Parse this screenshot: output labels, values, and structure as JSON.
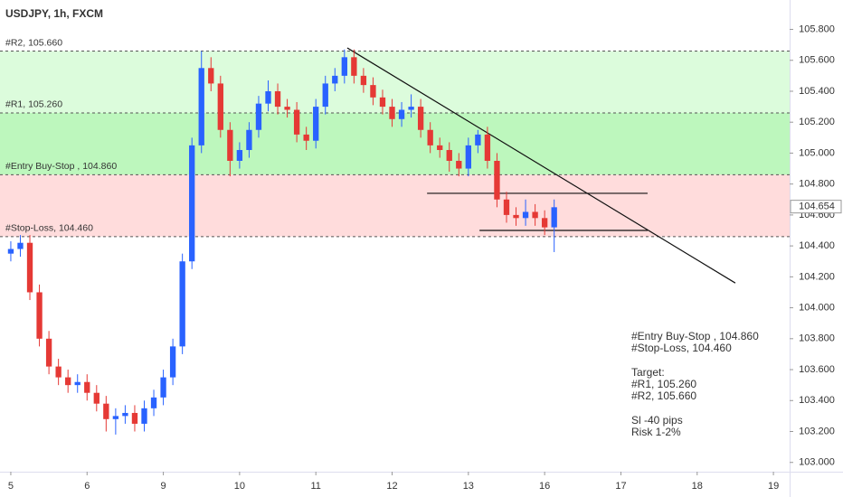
{
  "chart_data": {
    "type": "candlestick",
    "title": "USDJPY, 1h, FXCM",
    "x": [
      0,
      3,
      6,
      9,
      12,
      15,
      18,
      21,
      24,
      27,
      30,
      33,
      36,
      39,
      42,
      45,
      48,
      51,
      54,
      57,
      60,
      63,
      66,
      69,
      72,
      75,
      78,
      81,
      84,
      87,
      90,
      93,
      96,
      99,
      102,
      105,
      108,
      111,
      114,
      117,
      120,
      123,
      126,
      129,
      132,
      135,
      138,
      141,
      144,
      147,
      150,
      153,
      156,
      159,
      162,
      165,
      168,
      171
    ],
    "open": [
      104.35,
      104.38,
      104.42,
      104.1,
      103.8,
      103.62,
      103.55,
      103.5,
      103.52,
      103.45,
      103.38,
      103.28,
      103.3,
      103.32,
      103.25,
      103.35,
      103.42,
      103.55,
      103.75,
      104.3,
      105.05,
      105.55,
      105.45,
      105.15,
      104.95,
      105.02,
      105.15,
      105.32,
      105.4,
      105.3,
      105.28,
      105.12,
      105.08,
      105.3,
      105.45,
      105.5,
      105.62,
      105.5,
      105.44,
      105.36,
      105.3,
      105.22,
      105.28,
      105.3,
      105.15,
      105.05,
      105.02,
      104.95,
      104.9,
      105.05,
      105.12,
      104.95,
      104.7,
      104.6,
      104.58,
      104.62,
      104.58,
      104.52
    ],
    "high": [
      104.43,
      104.47,
      104.47,
      104.15,
      103.85,
      103.67,
      103.6,
      103.57,
      103.57,
      103.5,
      103.43,
      103.35,
      103.37,
      103.37,
      103.4,
      103.47,
      103.6,
      103.8,
      104.35,
      105.1,
      105.66,
      105.62,
      105.5,
      105.2,
      105.07,
      105.2,
      105.37,
      105.47,
      105.45,
      105.35,
      105.33,
      105.17,
      105.35,
      105.5,
      105.55,
      105.67,
      105.67,
      105.55,
      105.49,
      105.41,
      105.35,
      105.33,
      105.38,
      105.35,
      105.2,
      105.1,
      105.07,
      105.0,
      105.1,
      105.15,
      105.17,
      105.0,
      104.75,
      104.65,
      104.7,
      104.67,
      104.63,
      104.7
    ],
    "low": [
      104.3,
      104.33,
      104.05,
      103.75,
      103.57,
      103.5,
      103.45,
      103.45,
      103.4,
      103.33,
      103.2,
      103.18,
      103.25,
      103.2,
      103.2,
      103.3,
      103.37,
      103.5,
      103.7,
      104.25,
      105.0,
      105.4,
      105.1,
      104.85,
      104.9,
      104.97,
      105.1,
      105.27,
      105.25,
      105.23,
      105.07,
      105.02,
      105.03,
      105.25,
      105.4,
      105.45,
      105.45,
      105.39,
      105.31,
      105.25,
      105.17,
      105.17,
      105.23,
      105.1,
      105.0,
      104.97,
      104.88,
      104.85,
      104.85,
      105.0,
      104.9,
      104.65,
      104.55,
      104.53,
      104.53,
      104.53,
      104.47,
      104.36
    ],
    "close": [
      104.38,
      104.42,
      104.1,
      103.8,
      103.62,
      103.55,
      103.5,
      103.52,
      103.45,
      103.38,
      103.28,
      103.3,
      103.32,
      103.25,
      103.35,
      103.42,
      103.55,
      103.75,
      104.3,
      105.05,
      105.55,
      105.45,
      105.15,
      104.95,
      105.02,
      105.15,
      105.32,
      105.4,
      105.3,
      105.28,
      105.12,
      105.08,
      105.3,
      105.45,
      105.5,
      105.62,
      105.5,
      105.44,
      105.36,
      105.3,
      105.22,
      105.28,
      105.3,
      105.15,
      105.05,
      105.02,
      104.95,
      104.9,
      105.05,
      105.12,
      104.95,
      104.7,
      104.6,
      104.58,
      104.62,
      104.58,
      104.52,
      104.65
    ],
    "up_color": "#2962ff",
    "down_color": "#e53935",
    "xlim": [
      -3.4,
      245.1
    ],
    "xticks": [
      {
        "value": 0,
        "label": "5"
      },
      {
        "value": 24,
        "label": "6"
      },
      {
        "value": 48,
        "label": "9"
      },
      {
        "value": 72,
        "label": "10"
      },
      {
        "value": 96,
        "label": "11"
      },
      {
        "value": 120,
        "label": "12"
      },
      {
        "value": 144,
        "label": "13"
      },
      {
        "value": 168,
        "label": "16"
      },
      {
        "value": 192,
        "label": "17"
      },
      {
        "value": 216,
        "label": "18"
      },
      {
        "value": 240,
        "label": "19"
      }
    ],
    "ylim": [
      102.94,
      105.99
    ],
    "yticks": [
      {
        "value": 103.0,
        "label": "103.000"
      },
      {
        "value": 103.2,
        "label": "103.200"
      },
      {
        "value": 103.4,
        "label": "103.400"
      },
      {
        "value": 103.6,
        "label": "103.600"
      },
      {
        "value": 103.8,
        "label": "103.800"
      },
      {
        "value": 104.0,
        "label": "104.000"
      },
      {
        "value": 104.2,
        "label": "104.200"
      },
      {
        "value": 104.4,
        "label": "104.400"
      },
      {
        "value": 104.6,
        "label": "104.600"
      },
      {
        "value": 104.8,
        "label": "104.800"
      },
      {
        "value": 105.0,
        "label": "105.000"
      },
      {
        "value": 105.2,
        "label": "105.200"
      },
      {
        "value": 105.4,
        "label": "105.400"
      },
      {
        "value": 105.6,
        "label": "105.600"
      },
      {
        "value": 105.8,
        "label": "105.800"
      }
    ],
    "last_price": 104.654,
    "levels": [
      {
        "label": "#R2, 105.660",
        "value": 105.66
      },
      {
        "label": "#R1, 105.260",
        "value": 105.26
      },
      {
        "label": "#Entry Buy-Stop , 104.860",
        "value": 104.86
      },
      {
        "label": "#Stop-Loss, 104.460",
        "value": 104.46
      }
    ],
    "zone_colors": [
      "#dcfcdc",
      "#bdf7bd",
      "#ffdcdc"
    ],
    "lines": [
      {
        "x": [
          105.9,
          228
        ],
        "y": [
          105.68,
          104.16
        ]
      },
      {
        "x": [
          131,
          200.4
        ],
        "y": [
          104.74,
          104.74
        ]
      },
      {
        "x": [
          147.5,
          200.4
        ],
        "y": [
          104.5,
          104.5
        ]
      }
    ],
    "notes": [
      [
        "#Entry Buy-Stop , 104.860",
        "#Stop-Loss, 104.460"
      ],
      [
        "Target:",
        "#R1, 105.260",
        "#R2, 105.660"
      ],
      [
        "Sl -40 pips",
        "Risk 1-2%"
      ]
    ]
  }
}
